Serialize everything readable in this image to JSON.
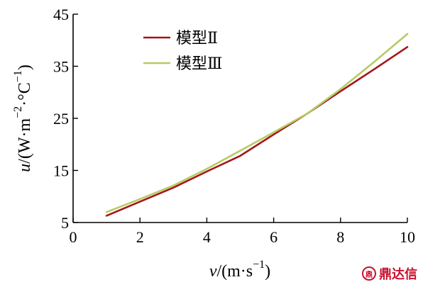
{
  "chart_data": {
    "type": "line",
    "xlabel": {
      "var": "v",
      "rest": "/(m·s",
      "sup": "−1",
      "close": ")"
    },
    "ylabel": {
      "var": "u",
      "rest": "/(W·m",
      "sup1": "−2",
      "mid": "·°C",
      "sup2": "−1",
      "close": ")"
    },
    "xlim": [
      0,
      10
    ],
    "ylim": [
      5,
      45
    ],
    "xticks": [
      0,
      2,
      4,
      6,
      8,
      10
    ],
    "yticks": [
      5,
      15,
      25,
      35,
      45
    ],
    "legend_position": "top-left",
    "grid": false,
    "series": [
      {
        "name": "模型Ⅱ",
        "color": "#a4161a",
        "x": [
          1,
          2,
          3,
          4,
          5,
          6,
          7,
          8,
          9,
          10
        ],
        "y": [
          6.3,
          9.0,
          11.7,
          14.8,
          17.8,
          21.9,
          25.9,
          30.2,
          34.4,
          38.7
        ]
      },
      {
        "name": "模型Ⅲ",
        "color": "#b5cc63",
        "x": [
          1,
          2,
          3,
          4,
          5,
          6,
          7,
          8,
          9,
          10
        ],
        "y": [
          7.0,
          9.5,
          12.1,
          15.3,
          18.8,
          22.3,
          25.9,
          30.6,
          35.8,
          41.2
        ]
      }
    ]
  },
  "watermark": {
    "text": "鼎达信",
    "icon": "dingdaxin-logo-icon"
  }
}
